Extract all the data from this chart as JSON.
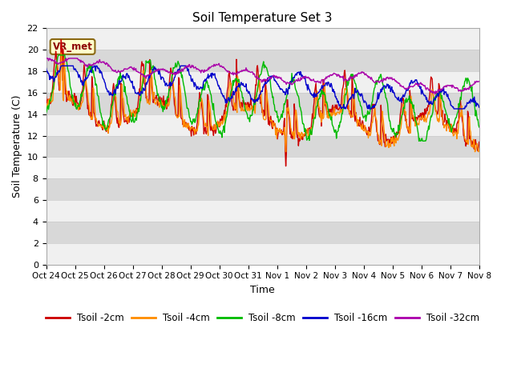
{
  "title": "Soil Temperature Set 3",
  "xlabel": "Time",
  "ylabel": "Soil Temperature (C)",
  "ylim": [
    0,
    22
  ],
  "yticks": [
    0,
    2,
    4,
    6,
    8,
    10,
    12,
    14,
    16,
    18,
    20,
    22
  ],
  "x_labels": [
    "Oct 24",
    "Oct 25",
    "Oct 26",
    "Oct 27",
    "Oct 28",
    "Oct 29",
    "Oct 30",
    "Oct 31",
    "Nov 1",
    "Nov 2",
    "Nov 3",
    "Nov 4",
    "Nov 5",
    "Nov 6",
    "Nov 7",
    "Nov 8"
  ],
  "series_colors": [
    "#cc0000",
    "#ff8c00",
    "#00bb00",
    "#0000cc",
    "#aa00aa"
  ],
  "series_labels": [
    "Tsoil -2cm",
    "Tsoil -4cm",
    "Tsoil -8cm",
    "Tsoil -16cm",
    "Tsoil -32cm"
  ],
  "annotation_text": "VR_met",
  "background_color": "#ffffff",
  "band_color_light": "#f0f0f0",
  "band_color_dark": "#d8d8d8",
  "line_width": 1.0
}
